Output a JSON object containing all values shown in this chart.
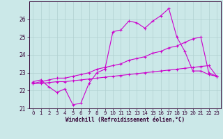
{
  "xlabel": "Windchill (Refroidissement éolien,°C)",
  "background_color": "#cbe8e8",
  "grid_color": "#b0d0d0",
  "line_color": "#cc00cc",
  "x": [
    0,
    1,
    2,
    3,
    4,
    5,
    6,
    7,
    8,
    9,
    10,
    11,
    12,
    13,
    14,
    15,
    16,
    17,
    18,
    19,
    20,
    21,
    22,
    23
  ],
  "line1": [
    22.5,
    22.6,
    22.2,
    21.9,
    22.1,
    21.2,
    21.3,
    22.4,
    23.0,
    23.2,
    25.3,
    25.4,
    25.9,
    25.8,
    25.5,
    25.9,
    26.2,
    26.6,
    25.0,
    24.2,
    23.1,
    23.1,
    22.9,
    22.8
  ],
  "line2": [
    22.4,
    22.5,
    22.6,
    22.7,
    22.7,
    22.8,
    22.9,
    23.0,
    23.2,
    23.3,
    23.4,
    23.5,
    23.7,
    23.8,
    23.9,
    24.1,
    24.2,
    24.4,
    24.5,
    24.7,
    24.9,
    25.0,
    23.0,
    22.8
  ],
  "line3": [
    22.4,
    22.4,
    22.45,
    22.5,
    22.5,
    22.55,
    22.6,
    22.65,
    22.7,
    22.75,
    22.8,
    22.85,
    22.9,
    22.95,
    23.0,
    23.05,
    23.1,
    23.15,
    23.2,
    23.25,
    23.3,
    23.35,
    23.4,
    22.8
  ],
  "ylim": [
    21.0,
    27.0
  ],
  "xlim": [
    -0.5,
    23.5
  ],
  "yticks": [
    21,
    22,
    23,
    24,
    25,
    26
  ],
  "xticks": [
    0,
    1,
    2,
    3,
    4,
    5,
    6,
    7,
    8,
    9,
    10,
    11,
    12,
    13,
    14,
    15,
    16,
    17,
    18,
    19,
    20,
    21,
    22,
    23
  ],
  "tick_fontsize": 5.0,
  "xlabel_fontsize": 5.5
}
